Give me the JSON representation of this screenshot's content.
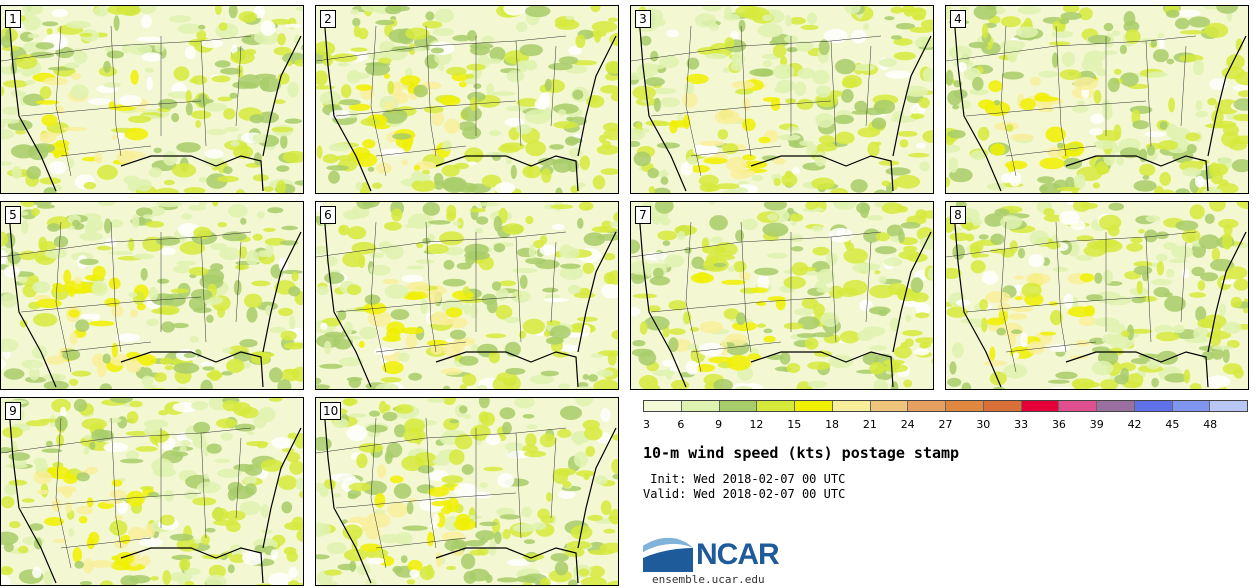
{
  "panels": [
    {
      "label": "1"
    },
    {
      "label": "2"
    },
    {
      "label": "3"
    },
    {
      "label": "4"
    },
    {
      "label": "5"
    },
    {
      "label": "6"
    },
    {
      "label": "7"
    },
    {
      "label": "8"
    },
    {
      "label": "9"
    },
    {
      "label": "10"
    }
  ],
  "colorbar": {
    "colors": [
      "#f4f9d8",
      "#dff2b0",
      "#a8cc6a",
      "#d6ea3c",
      "#f0f000",
      "#f8ef9a",
      "#efc57c",
      "#e8a060",
      "#e08840",
      "#d87038",
      "#e5003a",
      "#e05090",
      "#9970a0",
      "#6070e8",
      "#7f95f0",
      "#b8c7f5"
    ],
    "ticks": [
      "3",
      "6",
      "9",
      "12",
      "15",
      "18",
      "21",
      "24",
      "27",
      "30",
      "33",
      "36",
      "39",
      "42",
      "45",
      "48"
    ]
  },
  "title": "10-m wind speed (kts) postage stamp",
  "init": " Init: Wed 2018-02-07 00 UTC",
  "valid": "Valid: Wed 2018-02-07 00 UTC",
  "logo": {
    "text": "NCAR",
    "site": "ensemble.ucar.edu"
  }
}
